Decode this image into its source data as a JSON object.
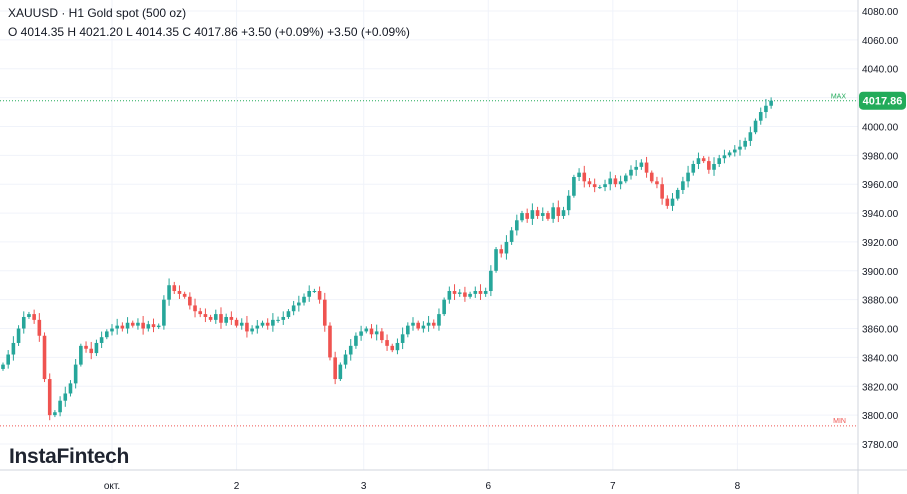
{
  "header": {
    "title": "XAUUSD · H1 Gold spot (500 oz)",
    "ohlc": "O 4014.35 H 4021.20 L 4014.35 C 4017.86 +3.50 (+0.09%) +3.50 (+0.09%)"
  },
  "logo": "InstaFintech",
  "chart_data": {
    "type": "candlestick",
    "ylim": [
      3770,
      4090
    ],
    "yticks": [
      3780,
      3800,
      3820,
      3840,
      3860,
      3880,
      3900,
      3920,
      3940,
      3960,
      3980,
      4000,
      4020,
      4040,
      4060,
      4080
    ],
    "xticks": [
      {
        "label": "окт.",
        "index": 21
      },
      {
        "label": "2",
        "index": 45
      },
      {
        "label": "3",
        "index": 69.5
      },
      {
        "label": "6",
        "index": 93.5
      },
      {
        "label": "7",
        "index": 117.5
      },
      {
        "label": "8",
        "index": 141.5
      }
    ],
    "last_price": "4017.86",
    "max_label": "MAX",
    "min_label": "MIN",
    "max_value": 4017.86,
    "min_value": 3792.6,
    "colors": {
      "up": "#26a69a",
      "down": "#ef5350",
      "last": "#22ab5a"
    },
    "close": [
      3835,
      3842,
      3850,
      3860,
      3868,
      3870,
      3866,
      3855,
      3825,
      3800,
      3802,
      3810,
      3815,
      3822,
      3835,
      3848,
      3846,
      3843,
      3850,
      3854,
      3858,
      3860,
      3862,
      3860,
      3864,
      3862,
      3864,
      3860,
      3863,
      3861,
      3862,
      3880,
      3890,
      3886,
      3884,
      3882,
      3876,
      3872,
      3870,
      3868,
      3866,
      3870,
      3864,
      3868,
      3866,
      3862,
      3864,
      3858,
      3860,
      3862,
      3864,
      3862,
      3866,
      3866,
      3868,
      3872,
      3876,
      3878,
      3882,
      3886,
      3886,
      3880,
      3862,
      3840,
      3825,
      3835,
      3842,
      3848,
      3855,
      3858,
      3860,
      3856,
      3858,
      3852,
      3848,
      3845,
      3850,
      3856,
      3862,
      3864,
      3860,
      3862,
      3864,
      3862,
      3870,
      3880,
      3886,
      3884,
      3885,
      3882,
      3884,
      3886,
      3884,
      3886,
      3900,
      3915,
      3912,
      3920,
      3928,
      3935,
      3940,
      3936,
      3942,
      3938,
      3940,
      3936,
      3944,
      3938,
      3942,
      3952,
      3965,
      3968,
      3962,
      3960,
      3958,
      3958,
      3960,
      3964,
      3960,
      3962,
      3966,
      3970,
      3972,
      3975,
      3968,
      3962,
      3960,
      3950,
      3945,
      3950,
      3956,
      3962,
      3968,
      3974,
      3978,
      3976,
      3970,
      3974,
      3978,
      3980,
      3982,
      3984,
      3986,
      3990,
      3996,
      4004,
      4010,
      4014.35,
      4017.86
    ]
  }
}
